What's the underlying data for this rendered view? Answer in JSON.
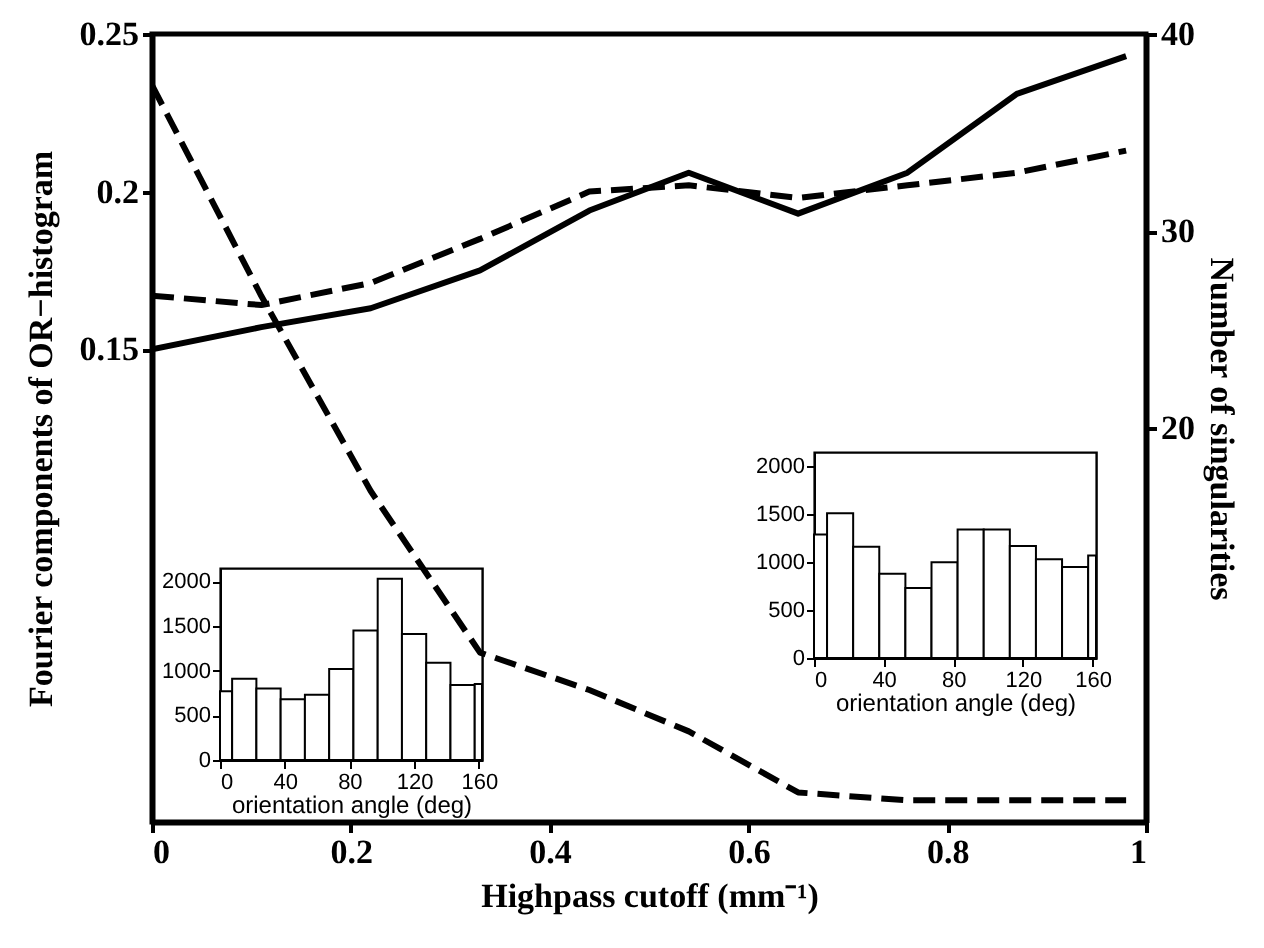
{
  "chart_data": [
    {
      "type": "line",
      "xlabel": "Highpass cutoff (mm⁻¹)",
      "ylabel": "Fourier components of OR−histogram",
      "y2label": "Number of singularities",
      "x": [
        0,
        0.11,
        0.22,
        0.33,
        0.44,
        0.54,
        0.65,
        0.76,
        0.87,
        0.98
      ],
      "xlim": [
        0,
        1
      ],
      "xticks": [
        0,
        0.2,
        0.4,
        0.6,
        0.8,
        1
      ],
      "ylim": [
        0,
        0.25
      ],
      "yticks": [
        0.15,
        0.2,
        0.25
      ],
      "y2lim": [
        0,
        40
      ],
      "y2ticks": [
        20,
        30,
        40
      ],
      "series": [
        {
          "color": "#000000",
          "line_style": "solid",
          "values": [
            0.15,
            0.157,
            0.163,
            0.175,
            0.194,
            0.206,
            0.193,
            0.206,
            0.231,
            0.243
          ]
        },
        {
          "color": "#000000",
          "line_style": "dashed",
          "values": [
            0.167,
            0.164,
            0.171,
            0.185,
            0.2,
            0.202,
            0.198,
            0.202,
            0.206,
            0.213
          ]
        },
        {
          "color": "#000000",
          "line_style": "dashed",
          "axis": "y2",
          "values": [
            37.4,
            26.7,
            16.8,
            8.6,
            6.7,
            4.6,
            1.5,
            1.1,
            1.1,
            1.1
          ]
        }
      ],
      "grid": false
    },
    {
      "type": "histogram",
      "xlabel": "orientation angle (deg)",
      "bins": [
        0,
        7.5,
        22.5,
        37.5,
        52.5,
        67.5,
        82.5,
        97.5,
        112.5,
        127.5,
        142.5,
        157.5,
        162
      ],
      "values": [
        770,
        910,
        800,
        680,
        730,
        1020,
        1450,
        2030,
        1410,
        1090,
        840,
        850
      ],
      "color": "#ffffff",
      "xlim": [
        0,
        162
      ],
      "xticks": [
        0,
        40,
        80,
        120,
        160
      ],
      "ylim": [
        0,
        2150
      ],
      "yticks": [
        0,
        500,
        1000,
        1500,
        2000
      ]
    },
    {
      "type": "histogram",
      "xlabel": "orientation angle (deg)",
      "bins": [
        0,
        7.5,
        22.5,
        37.5,
        52.5,
        67.5,
        82.5,
        97.5,
        112.5,
        127.5,
        142.5,
        157.5,
        162
      ],
      "values": [
        1290,
        1510,
        1160,
        880,
        730,
        1000,
        1340,
        1340,
        1170,
        1030,
        950,
        1070
      ],
      "color": "#ffffff",
      "xlim": [
        0,
        162
      ],
      "xticks": [
        0,
        40,
        80,
        120,
        160
      ],
      "ylim": [
        0,
        2150
      ],
      "yticks": [
        0,
        500,
        1000,
        1500,
        2000
      ]
    }
  ]
}
